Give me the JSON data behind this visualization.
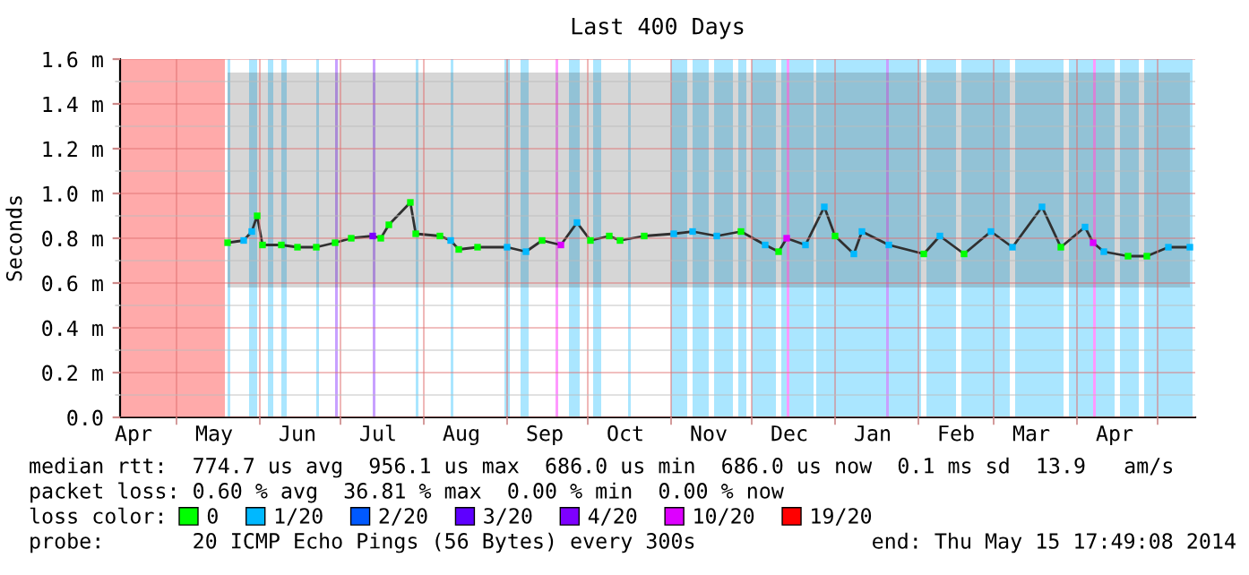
{
  "chart_data": {
    "type": "line",
    "title": "Last 400 Days",
    "ylabel": "Seconds",
    "legend_title": "loss color:",
    "legend": "bottom",
    "grid": true,
    "xlim": [
      "2013-04-10",
      "2014-05-15"
    ],
    "xticks": [
      {
        "value": "2013-04-15",
        "label": "Apr"
      },
      {
        "value": "2013-05-01",
        "label": null
      },
      {
        "value": "2013-05-15",
        "label": "May"
      },
      {
        "value": "2013-06-01",
        "label": null
      },
      {
        "value": "2013-06-15",
        "label": "Jun"
      },
      {
        "value": "2013-07-01",
        "label": null
      },
      {
        "value": "2013-07-15",
        "label": "Jul"
      },
      {
        "value": "2013-08-01",
        "label": null
      },
      {
        "value": "2013-08-15",
        "label": "Aug"
      },
      {
        "value": "2013-09-01",
        "label": null
      },
      {
        "value": "2013-09-15",
        "label": "Sep"
      },
      {
        "value": "2013-10-01",
        "label": null
      },
      {
        "value": "2013-10-15",
        "label": "Oct"
      },
      {
        "value": "2013-11-01",
        "label": null
      },
      {
        "value": "2013-11-15",
        "label": "Nov"
      },
      {
        "value": "2013-12-01",
        "label": null
      },
      {
        "value": "2013-12-15",
        "label": "Dec"
      },
      {
        "value": "2014-01-01",
        "label": null
      },
      {
        "value": "2014-01-15",
        "label": "Jan"
      },
      {
        "value": "2014-02-01",
        "label": null
      },
      {
        "value": "2014-02-15",
        "label": "Feb"
      },
      {
        "value": "2014-03-01",
        "label": null
      },
      {
        "value": "2014-03-15",
        "label": "Mar"
      },
      {
        "value": "2014-04-01",
        "label": null
      },
      {
        "value": "2014-04-15",
        "label": "Apr"
      },
      {
        "value": "2014-05-01",
        "label": null
      }
    ],
    "ylim": [
      0,
      1.6
    ],
    "yticks": [
      {
        "value": 0,
        "label": "0.0"
      },
      {
        "value": 0.1,
        "label": null
      },
      {
        "value": 0.2,
        "label": "0.2 m"
      },
      {
        "value": 0.3,
        "label": null
      },
      {
        "value": 0.4,
        "label": "0.4 m"
      },
      {
        "value": 0.5,
        "label": null
      },
      {
        "value": 0.6,
        "label": "0.6 m"
      },
      {
        "value": 0.7,
        "label": null
      },
      {
        "value": 0.8,
        "label": "0.8 m"
      },
      {
        "value": 0.9,
        "label": null
      },
      {
        "value": 1.0,
        "label": "1.0 m"
      },
      {
        "value": 1.1,
        "label": null
      },
      {
        "value": 1.2,
        "label": "1.2 m"
      },
      {
        "value": 1.3,
        "label": null
      },
      {
        "value": 1.4,
        "label": "1.4 m"
      },
      {
        "value": 1.5,
        "label": null
      },
      {
        "value": 1.6,
        "label": "1.6 m"
      }
    ],
    "bands": [
      {
        "axis": "x",
        "from": "2013-04-10",
        "to": "2013-05-19",
        "color": "#ffaaaa"
      },
      {
        "axis": "x",
        "from": "2013-05-20",
        "to": "2013-05-21",
        "color": "#aae6ff"
      },
      {
        "axis": "x",
        "from": "2013-05-28",
        "to": "2013-05-31",
        "color": "#aae6ff"
      },
      {
        "axis": "x",
        "from": "2013-06-04",
        "to": "2013-06-06",
        "color": "#aae6ff"
      },
      {
        "axis": "x",
        "from": "2013-06-09",
        "to": "2013-06-11",
        "color": "#aae6ff"
      },
      {
        "axis": "x",
        "from": "2013-06-22",
        "to": "2013-06-23",
        "color": "#aae6ff"
      },
      {
        "axis": "x",
        "from": "2013-06-29",
        "to": "2013-06-30",
        "color": "#c8a0ff"
      },
      {
        "axis": "x",
        "from": "2013-07-13",
        "to": "2013-07-14",
        "color": "#c8a0ff"
      },
      {
        "axis": "x",
        "from": "2013-07-29",
        "to": "2013-07-30",
        "color": "#aae6ff"
      },
      {
        "axis": "x",
        "from": "2013-08-11",
        "to": "2013-08-12",
        "color": "#aae6ff"
      },
      {
        "axis": "x",
        "from": "2013-08-31",
        "to": "2013-09-02",
        "color": "#aae6ff"
      },
      {
        "axis": "x",
        "from": "2013-09-06",
        "to": "2013-09-09",
        "color": "#aae6ff"
      },
      {
        "axis": "x",
        "from": "2013-09-19",
        "to": "2013-09-20",
        "color": "#ff99ff"
      },
      {
        "axis": "x",
        "from": "2013-09-24",
        "to": "2013-09-28",
        "color": "#aae6ff"
      },
      {
        "axis": "x",
        "from": "2013-10-03",
        "to": "2013-10-06",
        "color": "#aae6ff"
      },
      {
        "axis": "x",
        "from": "2013-10-16",
        "to": "2013-10-17",
        "color": "#aae6ff"
      },
      {
        "axis": "x",
        "from": "2013-11-01",
        "to": "2013-11-07",
        "color": "#aae6ff"
      },
      {
        "axis": "x",
        "from": "2013-11-09",
        "to": "2013-11-15",
        "color": "#aae6ff"
      },
      {
        "axis": "x",
        "from": "2013-11-17",
        "to": "2013-11-24",
        "color": "#aae6ff"
      },
      {
        "axis": "x",
        "from": "2013-11-26",
        "to": "2013-11-29",
        "color": "#aae6ff"
      },
      {
        "axis": "x",
        "from": "2013-12-01",
        "to": "2013-12-10",
        "color": "#aae6ff"
      },
      {
        "axis": "x",
        "from": "2013-12-12",
        "to": "2013-12-24",
        "color": "#aae6ff"
      },
      {
        "axis": "x",
        "from": "2013-12-14",
        "to": "2013-12-15",
        "color": "#ff99ff"
      },
      {
        "axis": "x",
        "from": "2013-12-25",
        "to": "2014-02-02",
        "color": "#aae6ff"
      },
      {
        "axis": "x",
        "from": "2014-01-20",
        "to": "2014-01-21",
        "color": "#c8a0ff"
      },
      {
        "axis": "x",
        "from": "2014-02-04",
        "to": "2014-02-15",
        "color": "#aae6ff"
      },
      {
        "axis": "x",
        "from": "2014-02-17",
        "to": "2014-03-07",
        "color": "#aae6ff"
      },
      {
        "axis": "x",
        "from": "2014-03-09",
        "to": "2014-03-27",
        "color": "#aae6ff"
      },
      {
        "axis": "x",
        "from": "2014-03-29",
        "to": "2014-04-15",
        "color": "#aae6ff"
      },
      {
        "axis": "x",
        "from": "2014-04-07",
        "to": "2014-04-08",
        "color": "#ff99ff"
      },
      {
        "axis": "x",
        "from": "2014-04-17",
        "to": "2014-04-24",
        "color": "#aae6ff"
      },
      {
        "axis": "x",
        "from": "2014-04-26",
        "to": "2014-05-14",
        "color": "#aae6ff"
      }
    ],
    "series": [
      {
        "color": "#303030",
        "x": [
          "2013-05-20",
          "2013-05-26",
          "2013-05-29",
          "2013-05-31",
          "2013-06-02",
          "2013-06-09",
          "2013-06-15",
          "2013-06-22",
          "2013-06-29",
          "2013-07-05",
          "2013-07-13",
          "2013-07-16",
          "2013-07-19",
          "2013-07-27",
          "2013-07-29",
          "2013-08-07",
          "2013-08-11",
          "2013-08-14",
          "2013-08-21",
          "2013-09-01",
          "2013-09-08",
          "2013-09-14",
          "2013-09-21",
          "2013-09-27",
          "2013-10-02",
          "2013-10-09",
          "2013-10-13",
          "2013-10-22",
          "2013-11-02",
          "2013-11-09",
          "2013-11-18",
          "2013-11-27",
          "2013-12-06",
          "2013-12-11",
          "2013-12-14",
          "2013-12-21",
          "2013-12-28",
          "2014-01-01",
          "2014-01-08",
          "2014-01-11",
          "2014-01-21",
          "2014-02-03",
          "2014-02-09",
          "2014-02-18",
          "2014-02-28",
          "2014-03-08",
          "2014-03-19",
          "2014-03-26",
          "2014-04-04",
          "2014-04-07",
          "2014-04-11",
          "2014-04-20",
          "2014-04-27",
          "2014-05-05",
          "2014-05-13"
        ],
        "values": [
          0.78,
          0.79,
          0.83,
          0.9,
          0.77,
          0.77,
          0.76,
          0.76,
          0.78,
          0.8,
          0.81,
          0.8,
          0.86,
          0.96,
          0.82,
          0.81,
          0.79,
          0.75,
          0.76,
          0.76,
          0.74,
          0.79,
          0.77,
          0.87,
          0.79,
          0.81,
          0.79,
          0.81,
          0.82,
          0.83,
          0.81,
          0.83,
          0.77,
          0.74,
          0.8,
          0.77,
          0.94,
          0.81,
          0.73,
          0.83,
          0.77,
          0.73,
          0.81,
          0.73,
          0.83,
          0.76,
          0.94,
          0.76,
          0.85,
          0.78,
          0.74,
          0.72,
          0.72,
          0.76,
          0.76
        ],
        "lower": [
          0.58,
          0.58,
          0.58,
          0.58,
          0.58,
          0.58,
          0.58,
          0.58,
          0.58,
          0.58,
          0.58,
          0.58,
          0.58,
          0.58,
          0.58,
          0.58,
          0.58,
          0.58,
          0.58,
          0.58,
          0.58,
          0.58,
          0.58,
          0.58,
          0.58,
          0.58,
          0.58,
          0.58,
          0.58,
          0.58,
          0.58,
          0.58,
          0.58,
          0.58,
          0.58,
          0.58,
          0.58,
          0.58,
          0.58,
          0.58,
          0.58,
          0.58,
          0.58,
          0.58,
          0.58,
          0.58,
          0.58,
          0.58,
          0.58,
          0.58,
          0.58,
          0.58,
          0.58,
          0.58,
          0.58
        ],
        "upper": [
          1.54,
          1.54,
          1.54,
          1.54,
          1.54,
          1.54,
          1.54,
          1.54,
          1.54,
          1.54,
          1.54,
          1.54,
          1.54,
          1.54,
          1.54,
          1.54,
          1.54,
          1.54,
          1.54,
          1.54,
          1.54,
          1.54,
          1.54,
          1.54,
          1.54,
          1.54,
          1.54,
          1.54,
          1.54,
          1.54,
          1.54,
          1.54,
          1.54,
          1.54,
          1.54,
          1.54,
          1.54,
          1.54,
          1.54,
          1.54,
          1.54,
          1.54,
          1.54,
          1.54,
          1.54,
          1.54,
          1.54,
          1.54,
          1.54,
          1.54,
          1.54,
          1.54,
          1.54,
          1.54,
          1.54
        ]
      },
      {
        "type": "scatter",
        "marker": "square",
        "name": "0",
        "color": "#00ff00",
        "x": [
          "2013-05-20",
          "2013-05-31",
          "2013-06-02",
          "2013-06-09",
          "2013-06-15",
          "2013-06-22",
          "2013-06-29",
          "2013-07-05",
          "2013-07-16",
          "2013-07-19",
          "2013-07-27",
          "2013-07-29",
          "2013-08-07",
          "2013-08-14",
          "2013-08-21",
          "2013-09-14",
          "2013-10-02",
          "2013-10-09",
          "2013-10-13",
          "2013-10-22",
          "2013-11-27",
          "2013-12-11",
          "2014-01-01",
          "2014-02-03",
          "2014-02-18",
          "2014-03-26",
          "2014-04-20",
          "2014-04-27"
        ],
        "values": [
          0.78,
          0.9,
          0.77,
          0.77,
          0.76,
          0.76,
          0.78,
          0.8,
          0.8,
          0.86,
          0.96,
          0.82,
          0.81,
          0.75,
          0.76,
          0.79,
          0.79,
          0.81,
          0.79,
          0.81,
          0.83,
          0.74,
          0.81,
          0.73,
          0.73,
          0.76,
          0.72,
          0.72
        ]
      },
      {
        "type": "scatter",
        "marker": "square",
        "name": "1/20",
        "color": "#00b8ff",
        "x": [
          "2013-05-26",
          "2013-05-29",
          "2013-08-11",
          "2013-09-01",
          "2013-09-08",
          "2013-09-27",
          "2013-11-02",
          "2013-11-09",
          "2013-11-18",
          "2013-12-06",
          "2013-12-21",
          "2013-12-28",
          "2014-01-08",
          "2014-01-11",
          "2014-01-21",
          "2014-02-09",
          "2014-02-28",
          "2014-03-08",
          "2014-03-19",
          "2014-04-04",
          "2014-04-11",
          "2014-05-05",
          "2014-05-13"
        ],
        "values": [
          0.79,
          0.83,
          0.79,
          0.76,
          0.74,
          0.87,
          0.82,
          0.83,
          0.81,
          0.77,
          0.77,
          0.94,
          0.73,
          0.83,
          0.77,
          0.81,
          0.83,
          0.76,
          0.94,
          0.85,
          0.74,
          0.76,
          0.76
        ]
      },
      {
        "type": "scatter",
        "marker": "square",
        "name": "2/20",
        "color": "#0059ff"
      },
      {
        "type": "scatter",
        "marker": "square",
        "name": "3/20",
        "color": "#5e00ff"
      },
      {
        "type": "scatter",
        "marker": "square",
        "name": "4/20",
        "color": "#7e00ff",
        "x": [
          "2013-07-13"
        ],
        "values": [
          0.81
        ]
      },
      {
        "type": "scatter",
        "marker": "square",
        "name": "10/20",
        "color": "#dd00ff",
        "x": [
          "2013-09-21",
          "2013-12-14",
          "2014-04-07"
        ],
        "values": [
          0.77,
          0.8,
          0.78
        ]
      },
      {
        "type": "scatter",
        "marker": "square",
        "name": "19/20",
        "color": "#ff0000"
      }
    ],
    "annotations": [
      "median rtt:  774.7 us avg  956.1 us max  686.0 us min  686.0 us now  0.1 ms sd  13.9   am/s",
      "packet loss: 0.60 % avg  36.81 % max  0.00 % min  0.00 % now",
      "probe:       20 ICMP Echo Pings (56 Bytes) every 300s",
      "end: Thu May 15 17:49:08 2014"
    ]
  }
}
